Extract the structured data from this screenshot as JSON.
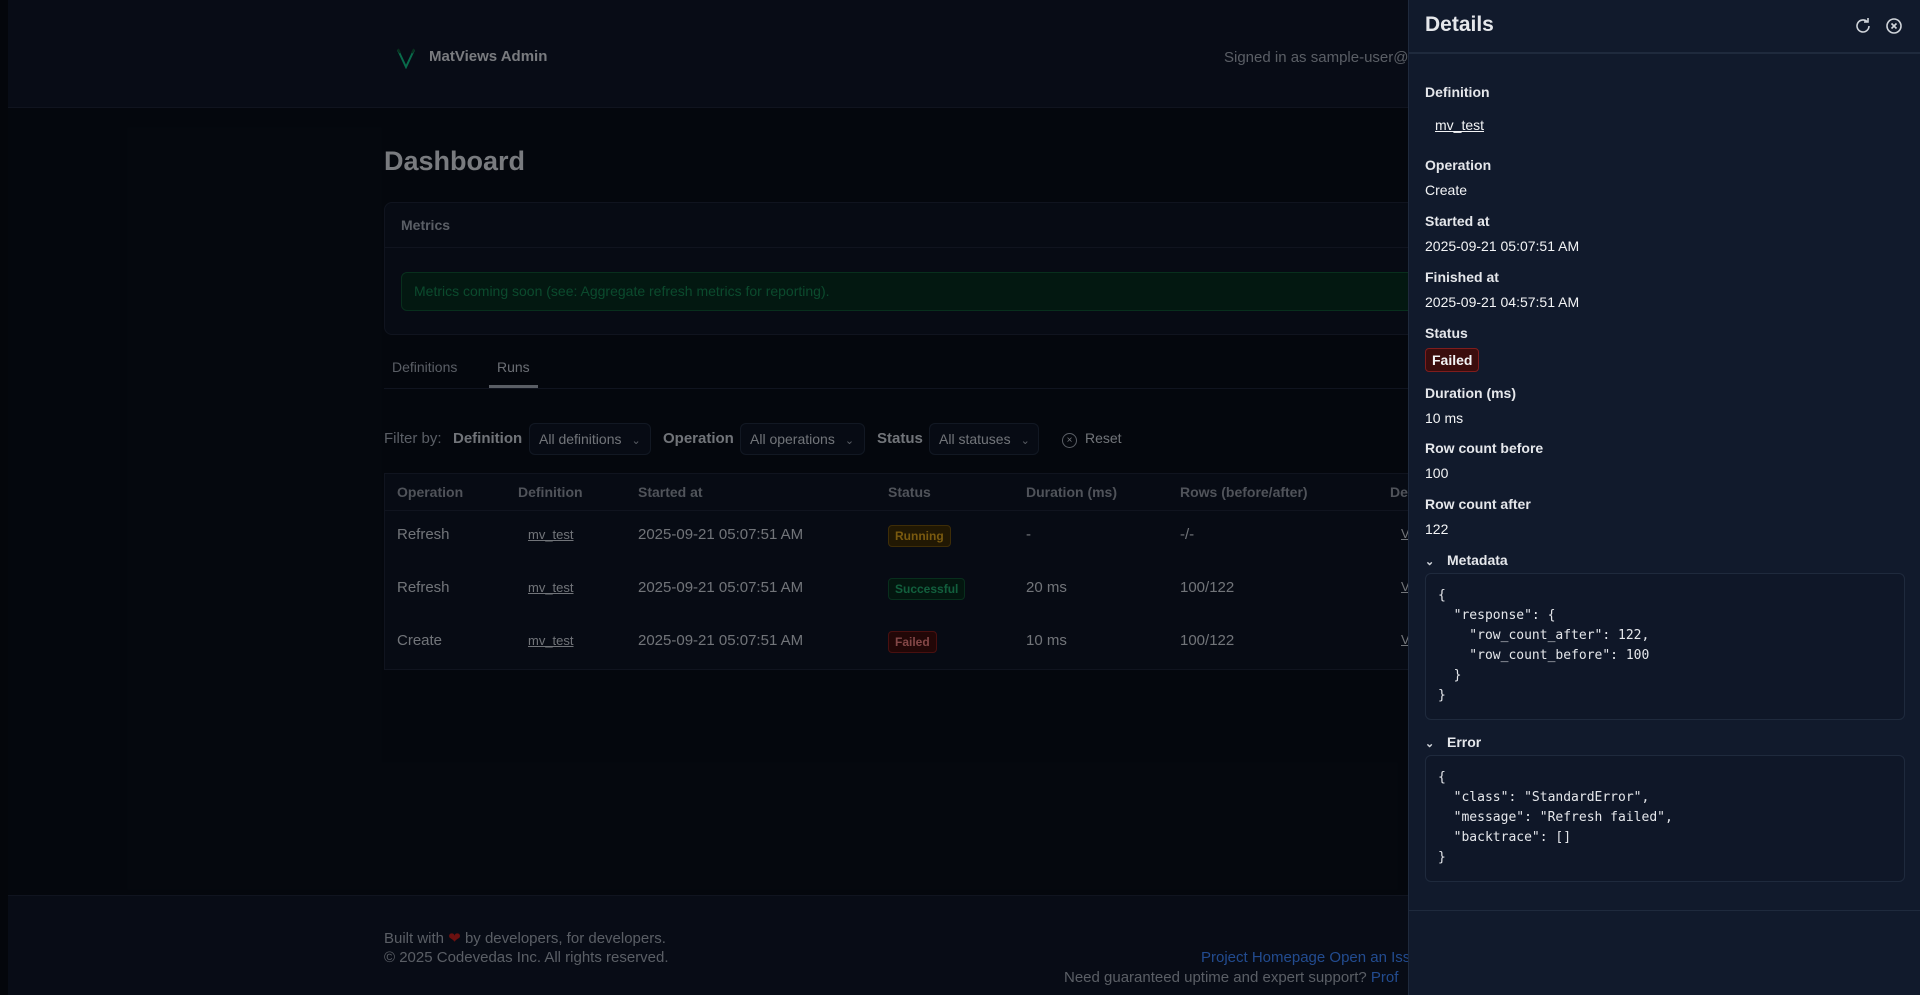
{
  "header": {
    "brand": "MatViews Admin",
    "signed_in": "Signed in as sample-user@e"
  },
  "page": {
    "title": "Dashboard"
  },
  "metrics": {
    "title": "Metrics",
    "notice": "Metrics coming soon (see: Aggregate refresh metrics for reporting)."
  },
  "tabs": [
    {
      "label": "Definitions",
      "active": false
    },
    {
      "label": "Runs",
      "active": true
    }
  ],
  "filters": {
    "label": "Filter by:",
    "definition_label": "Definition",
    "definition_value": "All definitions",
    "operation_label": "Operation",
    "operation_value": "All operations",
    "status_label": "Status",
    "status_value": "All statuses",
    "reset_label": "Reset"
  },
  "table": {
    "columns": [
      "Operation",
      "Definition",
      "Started at",
      "Status",
      "Duration (ms)",
      "Rows (before/after)",
      "De"
    ],
    "rows": [
      {
        "operation": "Refresh",
        "definition": "mv_test",
        "started_at": "2025-09-21 05:07:51 AM",
        "status": "Running",
        "duration": "-",
        "rows": "-/-",
        "action": "V"
      },
      {
        "operation": "Refresh",
        "definition": "mv_test",
        "started_at": "2025-09-21 05:07:51 AM",
        "status": "Successful",
        "duration": "20 ms",
        "rows": "100/122",
        "action": "V"
      },
      {
        "operation": "Create",
        "definition": "mv_test",
        "started_at": "2025-09-21 05:07:51 AM",
        "status": "Failed",
        "duration": "10 ms",
        "rows": "100/122",
        "action": "V"
      }
    ]
  },
  "footer": {
    "built_pre": "Built with",
    "built_post": "by developers, for developers.",
    "copyright": "© 2025 Codevedas Inc. All rights reserved.",
    "link_homepage": "Project Homepage",
    "link_issue": "Open an Iss",
    "support_text": "Need guaranteed uptime and expert support?",
    "support_link": "Prof"
  },
  "details": {
    "title": "Details",
    "definition_label": "Definition",
    "definition_value": "mv_test",
    "operation_label": "Operation",
    "operation_value": "Create",
    "started_label": "Started at",
    "started_value": "2025-09-21 05:07:51 AM",
    "finished_label": "Finished at",
    "finished_value": "2025-09-21 04:57:51 AM",
    "status_label": "Status",
    "status_value": "Failed",
    "duration_label": "Duration (ms)",
    "duration_value": "10 ms",
    "before_label": "Row count before",
    "before_value": "100",
    "after_label": "Row count after",
    "after_value": "122",
    "metadata_label": "Metadata",
    "metadata_json": "{\n  \"response\": {\n    \"row_count_after\": 122,\n    \"row_count_before\": 100\n  }\n}",
    "error_label": "Error",
    "error_json": "{\n  \"class\": \"StandardError\",\n  \"message\": \"Refresh failed\",\n  \"backtrace\": []\n}"
  },
  "colors": {
    "accent": "#10b981",
    "running": "#d29b1a",
    "success": "#1fa46a",
    "failed": "#e27b7b",
    "link": "#3b82f6"
  }
}
